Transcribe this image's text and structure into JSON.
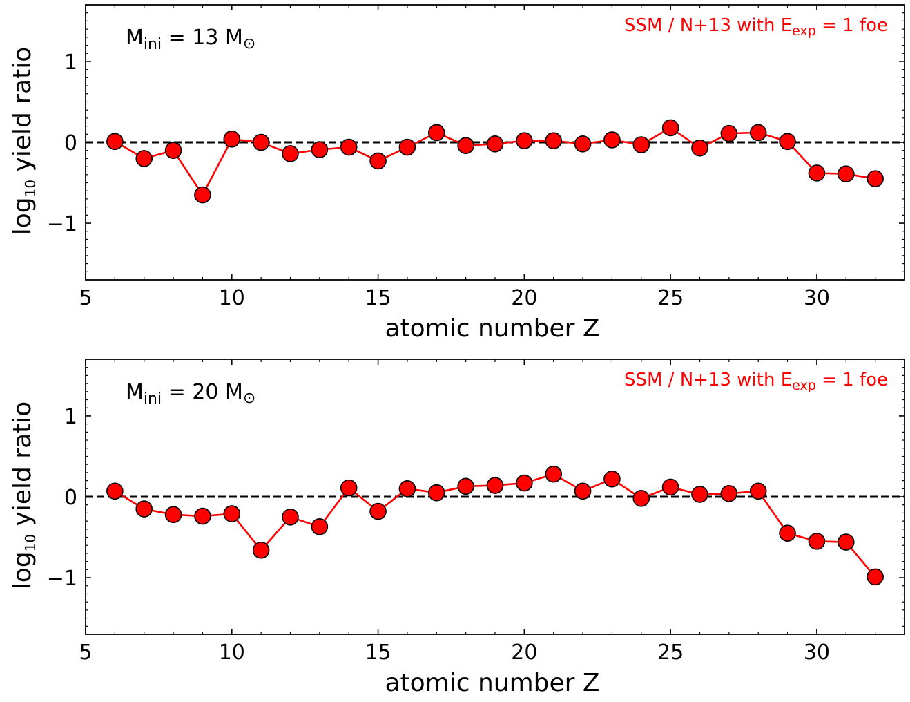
{
  "colors": {
    "series_line": "#ff0000",
    "marker_fill": "#ff0000",
    "marker_edge": "#000000",
    "reference_line": "#000000",
    "legend_text": "#ff0000"
  },
  "chart_data": [
    {
      "type": "line",
      "panel": "top",
      "annotation": {
        "main": "M",
        "sub": "ini",
        "rest": " = 13 M",
        "sun_symbol": "⊙"
      },
      "legend": {
        "prefix": "SSM / N+13 with E",
        "sub": "exp",
        "suffix": " = 1 foe"
      },
      "xlabel": "atomic number Z",
      "ylabel": {
        "main": "log",
        "sub": "10",
        "rest": " yield ratio"
      },
      "xlim": [
        5,
        33
      ],
      "ylim": [
        -1.7,
        1.7
      ],
      "xticks": [
        5,
        10,
        15,
        20,
        25,
        30
      ],
      "xtick_labels": [
        "5",
        "10",
        "15",
        "20",
        "25",
        "30"
      ],
      "yticks": [
        -1,
        0,
        1
      ],
      "ytick_labels": [
        "−1",
        "0",
        "1"
      ],
      "reference_line": {
        "y": 0,
        "style": "dashed"
      },
      "marker": "circle",
      "x": [
        6,
        7,
        8,
        9,
        10,
        11,
        12,
        13,
        14,
        15,
        16,
        17,
        18,
        19,
        20,
        21,
        22,
        23,
        24,
        25,
        26,
        27,
        28,
        29,
        30,
        31,
        32
      ],
      "y": [
        0.01,
        -0.2,
        -0.1,
        -0.65,
        0.04,
        0.0,
        -0.14,
        -0.09,
        -0.06,
        -0.23,
        -0.06,
        0.12,
        -0.04,
        -0.02,
        0.02,
        0.02,
        -0.02,
        0.03,
        -0.03,
        0.18,
        -0.07,
        0.11,
        0.12,
        0.01,
        -0.38,
        -0.39,
        -0.45
      ]
    },
    {
      "type": "line",
      "panel": "bottom",
      "annotation": {
        "main": "M",
        "sub": "ini",
        "rest": " = 20 M",
        "sun_symbol": "⊙"
      },
      "legend": {
        "prefix": "SSM / N+13 with E",
        "sub": "exp",
        "suffix": " = 1 foe"
      },
      "xlabel": "atomic number Z",
      "ylabel": {
        "main": "log",
        "sub": "10",
        "rest": " yield ratio"
      },
      "xlim": [
        5,
        33
      ],
      "ylim": [
        -1.7,
        1.7
      ],
      "xticks": [
        5,
        10,
        15,
        20,
        25,
        30
      ],
      "xtick_labels": [
        "5",
        "10",
        "15",
        "20",
        "25",
        "30"
      ],
      "yticks": [
        -1,
        0,
        1
      ],
      "ytick_labels": [
        "−1",
        "0",
        "1"
      ],
      "reference_line": {
        "y": 0,
        "style": "dashed"
      },
      "marker": "circle",
      "x": [
        6,
        7,
        8,
        9,
        10,
        11,
        12,
        13,
        14,
        15,
        16,
        17,
        18,
        19,
        20,
        21,
        22,
        23,
        24,
        25,
        26,
        27,
        28,
        29,
        30,
        31,
        32
      ],
      "y": [
        0.07,
        -0.15,
        -0.22,
        -0.24,
        -0.21,
        -0.66,
        -0.25,
        -0.37,
        0.11,
        -0.18,
        0.1,
        0.05,
        0.13,
        0.14,
        0.17,
        0.28,
        0.07,
        0.22,
        -0.02,
        0.12,
        0.03,
        0.04,
        0.07,
        -0.45,
        -0.55,
        -0.56,
        -0.99
      ]
    }
  ]
}
